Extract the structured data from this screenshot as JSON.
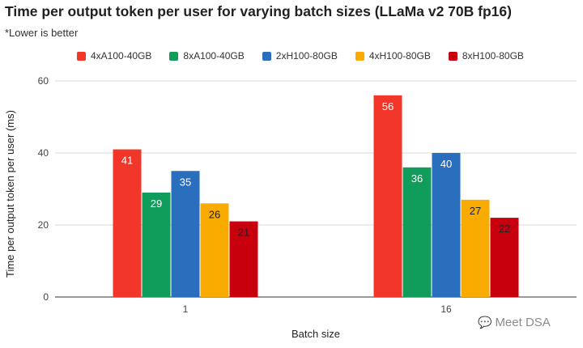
{
  "chart_data": {
    "type": "bar",
    "title": "Time per output token per user for varying batch sizes (LLaMa v2 70B fp16)",
    "subtitle": "*Lower is better",
    "xlabel": "Batch size",
    "ylabel": "Time per output token per user (ms)",
    "ylim": [
      0,
      60
    ],
    "yticks": [
      0,
      20,
      40,
      60
    ],
    "categories": [
      "1",
      "16"
    ],
    "series": [
      {
        "name": "4xA100-40GB",
        "color": "#f2372a",
        "values": [
          41,
          56
        ],
        "label_color": "#ffffff"
      },
      {
        "name": "8xA100-40GB",
        "color": "#109d5b",
        "values": [
          29,
          36
        ],
        "label_color": "#ffffff"
      },
      {
        "name": "2xH100-80GB",
        "color": "#2a6fbd",
        "values": [
          35,
          40
        ],
        "label_color": "#ffffff"
      },
      {
        "name": "4xH100-80GB",
        "color": "#f9ab00",
        "values": [
          26,
          27
        ],
        "label_color": "#222222"
      },
      {
        "name": "8xH100-80GB",
        "color": "#c8000d",
        "values": [
          21,
          22
        ],
        "label_color": "#222222"
      }
    ]
  },
  "watermark": {
    "icon": "wechat-icon",
    "text": "Meet DSA"
  }
}
